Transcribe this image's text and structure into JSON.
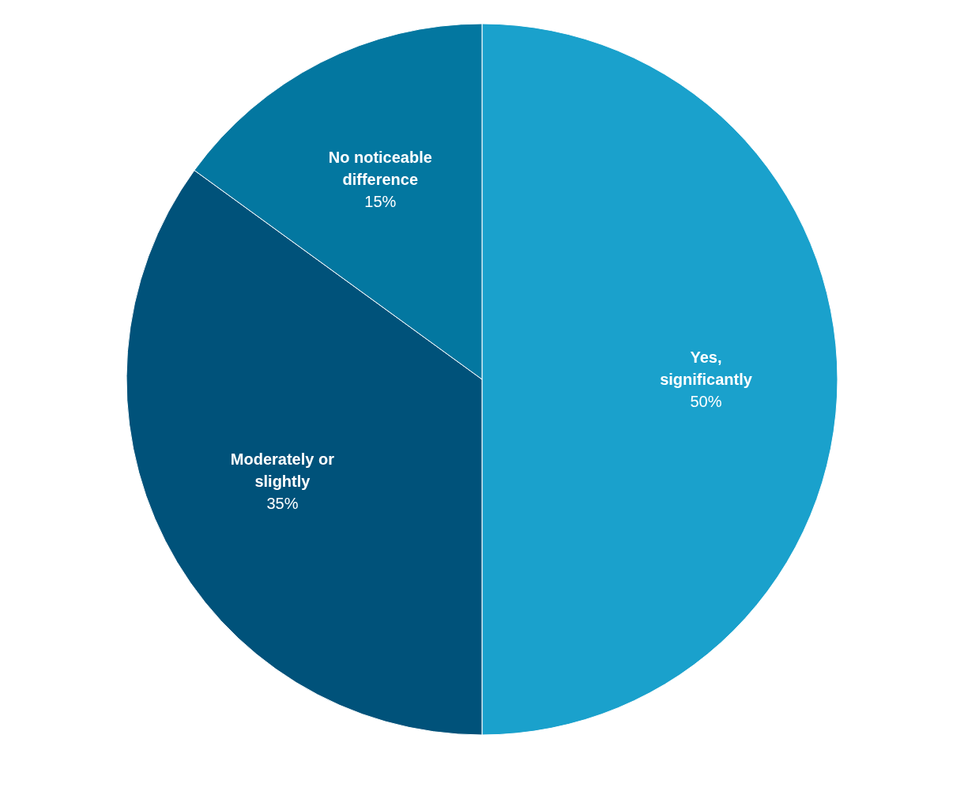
{
  "chart_data": {
    "type": "pie",
    "categories": [
      "Yes, significantly",
      "Moderately or slightly",
      "No noticeable difference"
    ],
    "values": [
      50,
      35,
      15
    ],
    "colors": [
      "#1aa1cc",
      "#00527a",
      "#0377a0"
    ],
    "value_labels": [
      "50%",
      "35%",
      "15%"
    ]
  }
}
